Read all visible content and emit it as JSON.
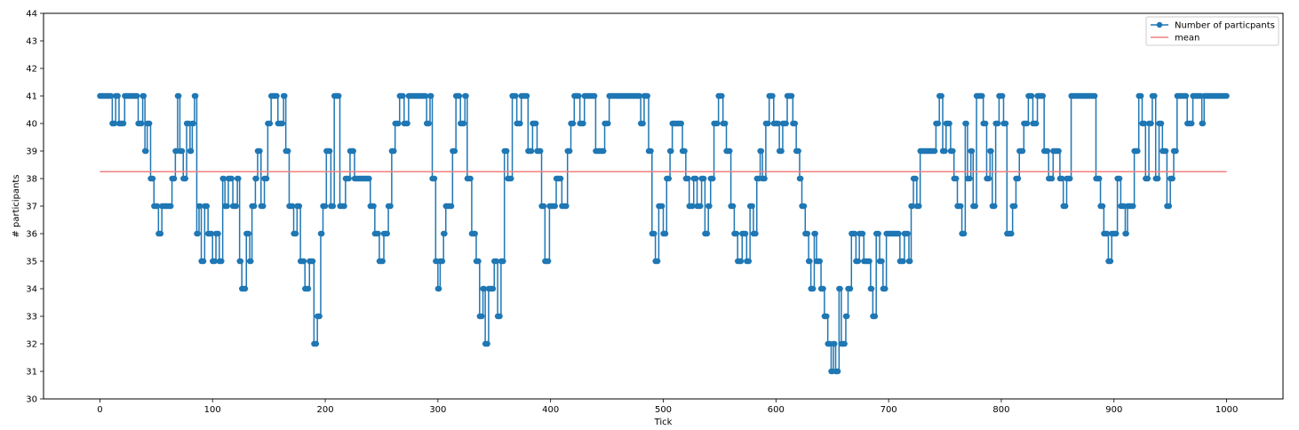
{
  "chart_data": {
    "type": "line",
    "title": "",
    "xlabel": "Tick",
    "ylabel": "# participants",
    "xlim": [
      -50,
      1050
    ],
    "ylim": [
      30,
      44
    ],
    "xticks": [
      0,
      100,
      200,
      300,
      400,
      500,
      600,
      700,
      800,
      900,
      1000
    ],
    "yticks": [
      30,
      31,
      32,
      33,
      34,
      35,
      36,
      37,
      38,
      39,
      40,
      41,
      42,
      43,
      44
    ],
    "grid": false,
    "legend": "top-right",
    "series": [
      {
        "name": "Number of particpants",
        "color": "#1f77b4",
        "marker": "circle",
        "points": [
          [
            0,
            41
          ],
          [
            10,
            41
          ],
          [
            11,
            40
          ],
          [
            14,
            41
          ],
          [
            17,
            40
          ],
          [
            22,
            41
          ],
          [
            33,
            41
          ],
          [
            34,
            40
          ],
          [
            38,
            41
          ],
          [
            40,
            39
          ],
          [
            42,
            40
          ],
          [
            45,
            38
          ],
          [
            48,
            37
          ],
          [
            52,
            36
          ],
          [
            55,
            37
          ],
          [
            62,
            37
          ],
          [
            64,
            38
          ],
          [
            67,
            39
          ],
          [
            69,
            41
          ],
          [
            71,
            39
          ],
          [
            74,
            38
          ],
          [
            77,
            40
          ],
          [
            80,
            39
          ],
          [
            82,
            40
          ],
          [
            84,
            41
          ],
          [
            86,
            36
          ],
          [
            88,
            37
          ],
          [
            90,
            35
          ],
          [
            93,
            37
          ],
          [
            96,
            36
          ],
          [
            100,
            35
          ],
          [
            103,
            36
          ],
          [
            106,
            35
          ],
          [
            109,
            38
          ],
          [
            111,
            37
          ],
          [
            114,
            38
          ],
          [
            118,
            37
          ],
          [
            122,
            38
          ],
          [
            124,
            35
          ],
          [
            126,
            34
          ],
          [
            130,
            36
          ],
          [
            133,
            35
          ],
          [
            135,
            37
          ],
          [
            138,
            38
          ],
          [
            140,
            39
          ],
          [
            143,
            37
          ],
          [
            146,
            38
          ],
          [
            149,
            40
          ],
          [
            152,
            41
          ],
          [
            158,
            40
          ],
          [
            163,
            41
          ],
          [
            165,
            39
          ],
          [
            168,
            37
          ],
          [
            172,
            36
          ],
          [
            175,
            37
          ],
          [
            178,
            35
          ],
          [
            182,
            34
          ],
          [
            186,
            35
          ],
          [
            190,
            32
          ],
          [
            193,
            33
          ],
          [
            196,
            36
          ],
          [
            198,
            37
          ],
          [
            201,
            39
          ],
          [
            203,
            39
          ],
          [
            205,
            37
          ],
          [
            208,
            41
          ],
          [
            213,
            37
          ],
          [
            218,
            38
          ],
          [
            222,
            39
          ],
          [
            226,
            38
          ],
          [
            238,
            38
          ],
          [
            240,
            37
          ],
          [
            244,
            36
          ],
          [
            248,
            35
          ],
          [
            252,
            36
          ],
          [
            256,
            37
          ],
          [
            259,
            39
          ],
          [
            262,
            40
          ],
          [
            266,
            41
          ],
          [
            270,
            40
          ],
          [
            274,
            41
          ],
          [
            290,
            40
          ],
          [
            293,
            41
          ],
          [
            295,
            38
          ],
          [
            298,
            35
          ],
          [
            300,
            34
          ],
          [
            302,
            35
          ],
          [
            305,
            36
          ],
          [
            307,
            37
          ],
          [
            310,
            37
          ],
          [
            313,
            39
          ],
          [
            316,
            41
          ],
          [
            320,
            40
          ],
          [
            324,
            41
          ],
          [
            326,
            38
          ],
          [
            330,
            36
          ],
          [
            334,
            35
          ],
          [
            337,
            33
          ],
          [
            340,
            34
          ],
          [
            342,
            32
          ],
          [
            345,
            34
          ],
          [
            350,
            35
          ],
          [
            353,
            33
          ],
          [
            356,
            35
          ],
          [
            359,
            39
          ],
          [
            362,
            38
          ],
          [
            366,
            41
          ],
          [
            370,
            40
          ],
          [
            374,
            41
          ],
          [
            380,
            39
          ],
          [
            384,
            40
          ],
          [
            388,
            39
          ],
          [
            392,
            37
          ],
          [
            395,
            35
          ],
          [
            399,
            37
          ],
          [
            405,
            38
          ],
          [
            410,
            37
          ],
          [
            415,
            39
          ],
          [
            418,
            40
          ],
          [
            421,
            41
          ],
          [
            426,
            40
          ],
          [
            430,
            41
          ],
          [
            440,
            39
          ],
          [
            445,
            39
          ],
          [
            448,
            40
          ],
          [
            452,
            41
          ],
          [
            478,
            41
          ],
          [
            480,
            40
          ],
          [
            483,
            41
          ],
          [
            487,
            39
          ],
          [
            490,
            36
          ],
          [
            493,
            35
          ],
          [
            496,
            37
          ],
          [
            500,
            36
          ],
          [
            503,
            38
          ],
          [
            506,
            39
          ],
          [
            508,
            40
          ],
          [
            515,
            40
          ],
          [
            517,
            39
          ],
          [
            520,
            38
          ],
          [
            523,
            37
          ],
          [
            527,
            38
          ],
          [
            530,
            37
          ],
          [
            534,
            38
          ],
          [
            537,
            36
          ],
          [
            540,
            37
          ],
          [
            542,
            38
          ],
          [
            545,
            40
          ],
          [
            549,
            41
          ],
          [
            553,
            40
          ],
          [
            556,
            39
          ],
          [
            560,
            37
          ],
          [
            563,
            36
          ],
          [
            566,
            35
          ],
          [
            570,
            36
          ],
          [
            574,
            35
          ],
          [
            577,
            37
          ],
          [
            580,
            36
          ],
          [
            583,
            38
          ],
          [
            586,
            39
          ],
          [
            588,
            38
          ],
          [
            591,
            40
          ],
          [
            594,
            41
          ],
          [
            598,
            40
          ],
          [
            603,
            39
          ],
          [
            606,
            40
          ],
          [
            610,
            41
          ],
          [
            615,
            40
          ],
          [
            618,
            39
          ],
          [
            621,
            38
          ],
          [
            623,
            37
          ],
          [
            626,
            36
          ],
          [
            629,
            35
          ],
          [
            631,
            34
          ],
          [
            634,
            36
          ],
          [
            636,
            35
          ],
          [
            640,
            34
          ],
          [
            643,
            33
          ],
          [
            646,
            32
          ],
          [
            649,
            31
          ],
          [
            651,
            32
          ],
          [
            653,
            31
          ],
          [
            656,
            34
          ],
          [
            658,
            32
          ],
          [
            662,
            33
          ],
          [
            664,
            34
          ],
          [
            667,
            36
          ],
          [
            671,
            35
          ],
          [
            674,
            36
          ],
          [
            678,
            35
          ],
          [
            684,
            34
          ],
          [
            686,
            33
          ],
          [
            689,
            36
          ],
          [
            692,
            35
          ],
          [
            695,
            34
          ],
          [
            698,
            36
          ],
          [
            706,
            36
          ],
          [
            710,
            35
          ],
          [
            714,
            36
          ],
          [
            718,
            35
          ],
          [
            720,
            37
          ],
          [
            722,
            38
          ],
          [
            725,
            37
          ],
          [
            728,
            39
          ],
          [
            740,
            39
          ],
          [
            742,
            40
          ],
          [
            745,
            41
          ],
          [
            748,
            39
          ],
          [
            751,
            40
          ],
          [
            755,
            39
          ],
          [
            758,
            38
          ],
          [
            761,
            37
          ],
          [
            765,
            36
          ],
          [
            768,
            40
          ],
          [
            770,
            38
          ],
          [
            773,
            39
          ],
          [
            775,
            37
          ],
          [
            778,
            41
          ],
          [
            784,
            40
          ],
          [
            787,
            38
          ],
          [
            790,
            39
          ],
          [
            792,
            37
          ],
          [
            795,
            40
          ],
          [
            798,
            41
          ],
          [
            802,
            40
          ],
          [
            805,
            36
          ],
          [
            810,
            37
          ],
          [
            813,
            38
          ],
          [
            816,
            39
          ],
          [
            820,
            40
          ],
          [
            824,
            41
          ],
          [
            828,
            40
          ],
          [
            832,
            41
          ],
          [
            838,
            39
          ],
          [
            842,
            38
          ],
          [
            846,
            39
          ],
          [
            852,
            38
          ],
          [
            855,
            37
          ],
          [
            858,
            38
          ],
          [
            862,
            41
          ],
          [
            880,
            41
          ],
          [
            884,
            38
          ],
          [
            888,
            37
          ],
          [
            891,
            36
          ],
          [
            895,
            35
          ],
          [
            898,
            36
          ],
          [
            903,
            38
          ],
          [
            906,
            37
          ],
          [
            910,
            36
          ],
          [
            912,
            37
          ],
          [
            918,
            39
          ],
          [
            922,
            41
          ],
          [
            925,
            40
          ],
          [
            928,
            38
          ],
          [
            931,
            40
          ],
          [
            934,
            41
          ],
          [
            937,
            38
          ],
          [
            940,
            40
          ],
          [
            943,
            39
          ],
          [
            947,
            37
          ],
          [
            950,
            38
          ],
          [
            953,
            39
          ],
          [
            956,
            41
          ],
          [
            965,
            40
          ],
          [
            970,
            41
          ],
          [
            978,
            40
          ],
          [
            980,
            41
          ],
          [
            1000,
            41
          ]
        ]
      },
      {
        "name": "mean",
        "color": "#f08080",
        "marker": "none",
        "points": [
          [
            0,
            38.25
          ],
          [
            1000,
            38.25
          ]
        ]
      }
    ]
  }
}
